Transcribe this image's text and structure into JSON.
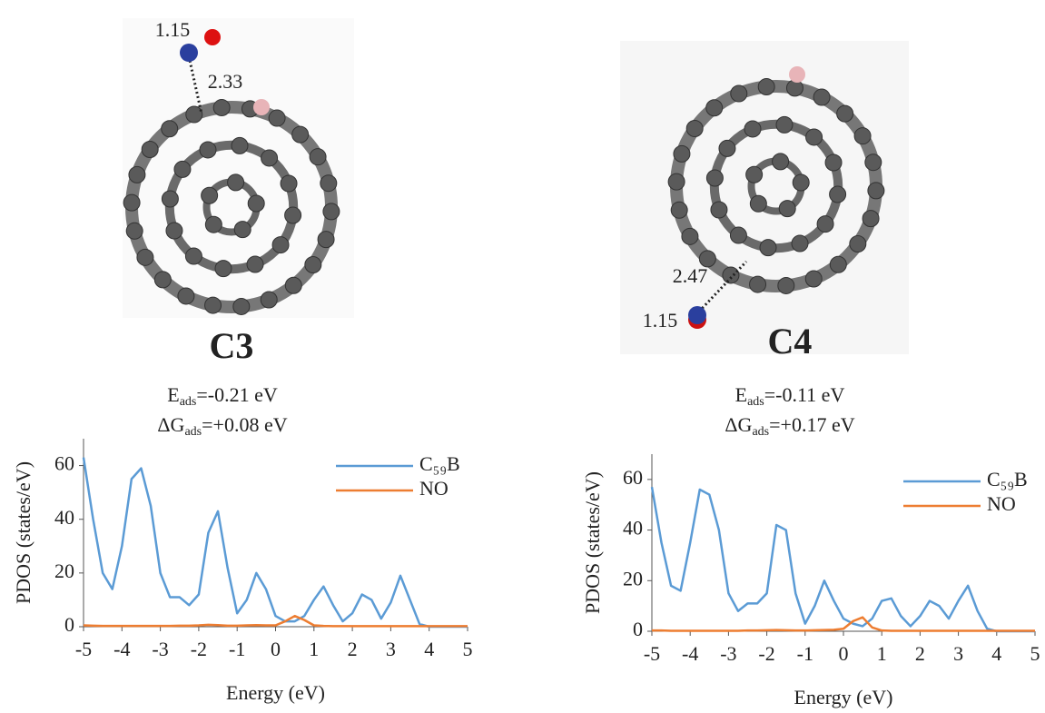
{
  "panels": [
    {
      "name": "C3",
      "bond_no": "1.15",
      "distance": "2.33",
      "e_symbol": "E",
      "e_sub": "ads",
      "e_value": "=-0.21 eV",
      "g_symbol": "ΔG",
      "g_sub": "ads",
      "g_value": "=+0.08 eV"
    },
    {
      "name": "C4",
      "bond_no": "1.15",
      "distance": "2.47",
      "e_symbol": "E",
      "e_sub": "ads",
      "e_value": "=-0.11 eV",
      "g_symbol": "ΔG",
      "g_sub": "ads",
      "g_value": "=+0.17 eV"
    }
  ],
  "chart_data": [
    {
      "type": "line",
      "x_label": "Energy (eV)",
      "y_label": "PDOS (states/eV)",
      "x": [
        -5,
        -4.75,
        -4.5,
        -4.25,
        -4,
        -3.75,
        -3.5,
        -3.25,
        -3,
        -2.75,
        -2.5,
        -2.25,
        -2,
        -1.75,
        -1.5,
        -1.25,
        -1,
        -0.75,
        -0.5,
        -0.25,
        0,
        0.25,
        0.5,
        0.75,
        1,
        1.25,
        1.5,
        1.75,
        2,
        2.25,
        2.5,
        2.75,
        3,
        3.25,
        3.5,
        3.75,
        4,
        4.25,
        4.5,
        4.75,
        5
      ],
      "xlim": [
        -5,
        5
      ],
      "xticks": [
        -5,
        -4,
        -3,
        -2,
        -1,
        0,
        1,
        2,
        3,
        4,
        5
      ],
      "ylim": [
        0,
        70
      ],
      "yticks": [
        0,
        20,
        40,
        60
      ],
      "legend": "upper right",
      "series": [
        {
          "name": "C₅₉B",
          "color": "#5b9bd5",
          "values": [
            63,
            40,
            20,
            14,
            30,
            55,
            59,
            45,
            20,
            11,
            11,
            8,
            12,
            35,
            43,
            22,
            5,
            10,
            20,
            14,
            4,
            2,
            2,
            4,
            10,
            15,
            8,
            2,
            5,
            12,
            10,
            3,
            9,
            19,
            10,
            1,
            0,
            0,
            0,
            0,
            0
          ]
        },
        {
          "name": "NO",
          "color": "#ed7d31",
          "values": [
            0.5,
            0.4,
            0.3,
            0.3,
            0.3,
            0.3,
            0.3,
            0.3,
            0.3,
            0.3,
            0.4,
            0.4,
            0.5,
            0.7,
            0.6,
            0.4,
            0.4,
            0.5,
            0.6,
            0.5,
            0.5,
            2,
            4,
            2.5,
            0.5,
            0.3,
            0.2,
            0.2,
            0.2,
            0.2,
            0.2,
            0.2,
            0.2,
            0.2,
            0.2,
            0.2,
            0.2,
            0.2,
            0.2,
            0.2,
            0.2
          ]
        }
      ]
    },
    {
      "type": "line",
      "x_label": "Energy (eV)",
      "y_label": "PDOS (states/eV)",
      "x": [
        -5,
        -4.75,
        -4.5,
        -4.25,
        -4,
        -3.75,
        -3.5,
        -3.25,
        -3,
        -2.75,
        -2.5,
        -2.25,
        -2,
        -1.75,
        -1.5,
        -1.25,
        -1,
        -0.75,
        -0.5,
        -0.25,
        0,
        0.25,
        0.5,
        0.75,
        1,
        1.25,
        1.5,
        1.75,
        2,
        2.25,
        2.5,
        2.75,
        3,
        3.25,
        3.5,
        3.75,
        4,
        4.25,
        4.5,
        4.75,
        5
      ],
      "xlim": [
        -5,
        5
      ],
      "xticks": [
        -5,
        -4,
        -3,
        -2,
        -1,
        0,
        1,
        2,
        3,
        4,
        5
      ],
      "ylim": [
        0,
        70
      ],
      "yticks": [
        0,
        20,
        40,
        60
      ],
      "legend": "upper right",
      "series": [
        {
          "name": "C₅₉B",
          "color": "#5b9bd5",
          "values": [
            57,
            35,
            18,
            16,
            35,
            56,
            54,
            40,
            15,
            8,
            11,
            11,
            15,
            42,
            40,
            15,
            3,
            10,
            20,
            12,
            5,
            3,
            2,
            5,
            12,
            13,
            6,
            2,
            6,
            12,
            10,
            5,
            12,
            18,
            8,
            1,
            0,
            0,
            0,
            0,
            0
          ]
        },
        {
          "name": "NO",
          "color": "#ed7d31",
          "values": [
            0.3,
            0.3,
            0.2,
            0.2,
            0.2,
            0.2,
            0.2,
            0.2,
            0.2,
            0.2,
            0.3,
            0.3,
            0.4,
            0.5,
            0.4,
            0.3,
            0.3,
            0.4,
            0.5,
            0.6,
            1,
            4,
            5.5,
            1.5,
            0.3,
            0.2,
            0.2,
            0.2,
            0.2,
            0.2,
            0.2,
            0.2,
            0.2,
            0.2,
            0.2,
            0.2,
            0.2,
            0.2,
            0.2,
            0.2,
            0.2
          ]
        }
      ]
    }
  ]
}
